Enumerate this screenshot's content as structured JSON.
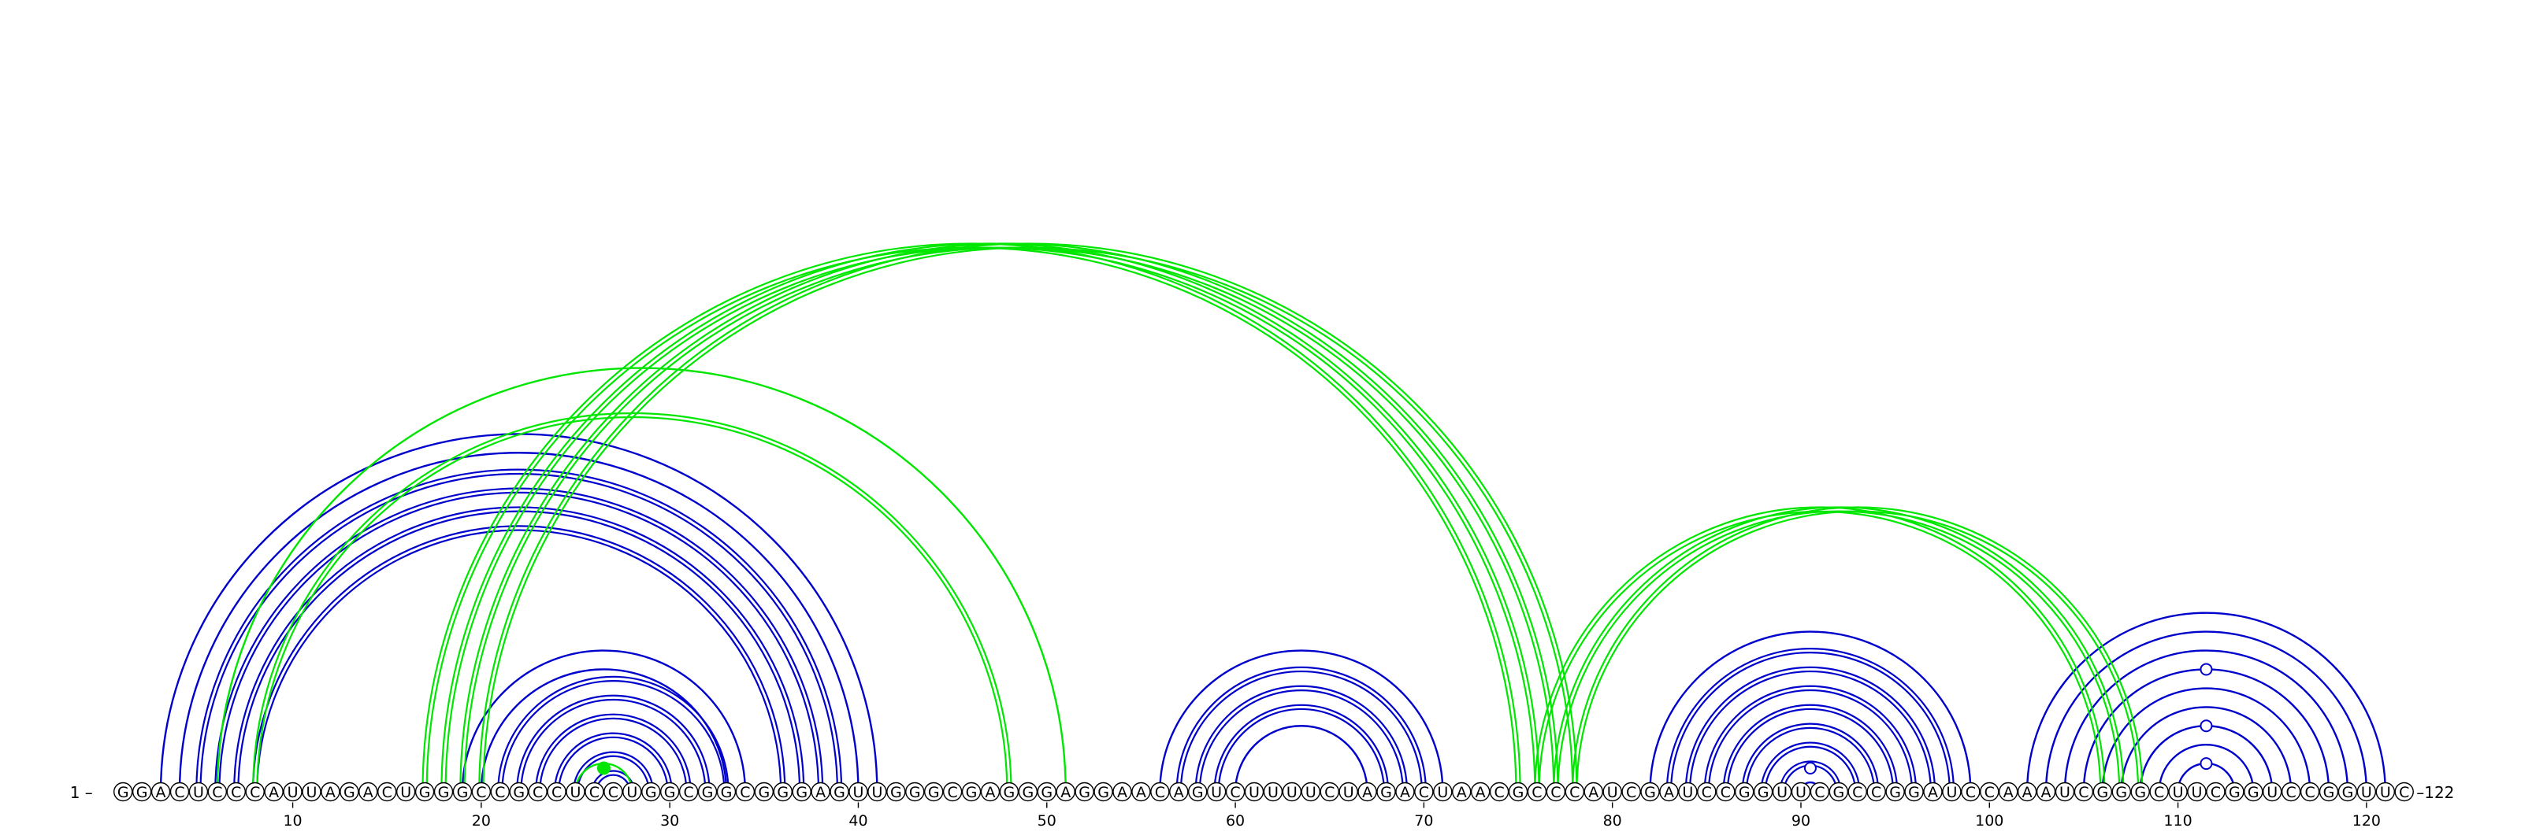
{
  "sequence": "GGACUCCCAUUAGACUGGGCCGCCUCCUGGCGGCGGGAGUUGGGCGAGGGAGGAACAGUCUUUUCUAGACUAACGCCCAUCGAUCCGGUUCGCCGGAUCCAAAUCGGGCUUCGGUCCGGUUC",
  "start_label": "1 –",
  "end_label": "–122",
  "ticks": [
    10,
    20,
    30,
    40,
    50,
    60,
    70,
    80,
    90,
    100,
    110,
    120
  ],
  "colors": {
    "blue": "#0000cc",
    "green": "#00e600"
  },
  "arc_groups": [
    {
      "color": "blue",
      "style": "double",
      "pairs": [
        [
          5,
          39
        ],
        [
          6,
          38
        ],
        [
          7,
          37
        ],
        [
          8,
          36
        ]
      ]
    },
    {
      "color": "blue",
      "style": "single",
      "pairs": [
        [
          3,
          41
        ],
        [
          4,
          40
        ]
      ]
    },
    {
      "color": "blue",
      "style": "double",
      "pairs": [
        [
          21,
          33
        ],
        [
          22,
          32
        ],
        [
          23,
          31
        ],
        [
          24,
          30
        ],
        [
          25,
          29
        ],
        [
          26,
          28
        ]
      ]
    },
    {
      "color": "blue",
      "style": "single",
      "pairs": [
        [
          19,
          34
        ],
        [
          20,
          33
        ]
      ]
    },
    {
      "color": "blue",
      "style": "double",
      "pairs": [
        [
          57,
          70
        ],
        [
          58,
          69
        ],
        [
          59,
          68
        ]
      ]
    },
    {
      "color": "blue",
      "style": "single",
      "pairs": [
        [
          56,
          71
        ],
        [
          60,
          67
        ]
      ]
    },
    {
      "color": "blue",
      "style": "double",
      "pairs": [
        [
          83,
          98
        ],
        [
          84,
          97
        ],
        [
          85,
          96
        ],
        [
          86,
          95
        ],
        [
          87,
          94
        ],
        [
          88,
          93
        ],
        [
          89,
          92
        ]
      ]
    },
    {
      "color": "blue",
      "style": "single",
      "pairs": [
        [
          82,
          99
        ],
        [
          90,
          91
        ]
      ]
    },
    {
      "color": "blue",
      "style": "single",
      "pairs": [
        [
          102,
          121
        ],
        [
          103,
          120
        ],
        [
          104,
          119
        ],
        [
          105,
          118
        ],
        [
          106,
          117
        ],
        [
          107,
          116
        ],
        [
          108,
          115
        ],
        [
          109,
          114
        ],
        [
          110,
          113
        ]
      ]
    },
    {
      "color": "green",
      "style": "double",
      "pairs": [
        [
          17,
          75
        ],
        [
          18,
          76
        ],
        [
          19,
          77
        ],
        [
          20,
          78
        ]
      ]
    },
    {
      "color": "green",
      "style": "double",
      "pairs": [
        [
          8,
          48
        ]
      ]
    },
    {
      "color": "green",
      "style": "single",
      "pairs": [
        [
          6,
          51
        ]
      ]
    },
    {
      "color": "green",
      "style": "double",
      "pairs": [
        [
          76,
          106
        ],
        [
          77,
          107
        ],
        [
          78,
          108
        ]
      ]
    },
    {
      "color": "green",
      "style": "single",
      "pairs": [
        [
          25,
          28
        ]
      ]
    }
  ],
  "markers": [
    {
      "position": 26.5,
      "color": "green",
      "filled": true
    },
    {
      "position": 90.5,
      "color": "blue",
      "filled": false
    },
    {
      "position": 111.5,
      "color": "blue",
      "filled": false,
      "over_pair": [
        105,
        118
      ]
    },
    {
      "position": 111.5,
      "color": "blue",
      "filled": false,
      "over_pair": [
        108,
        115
      ]
    },
    {
      "position": 111.5,
      "color": "blue",
      "filled": false,
      "over_pair": [
        110,
        113
      ]
    }
  ]
}
